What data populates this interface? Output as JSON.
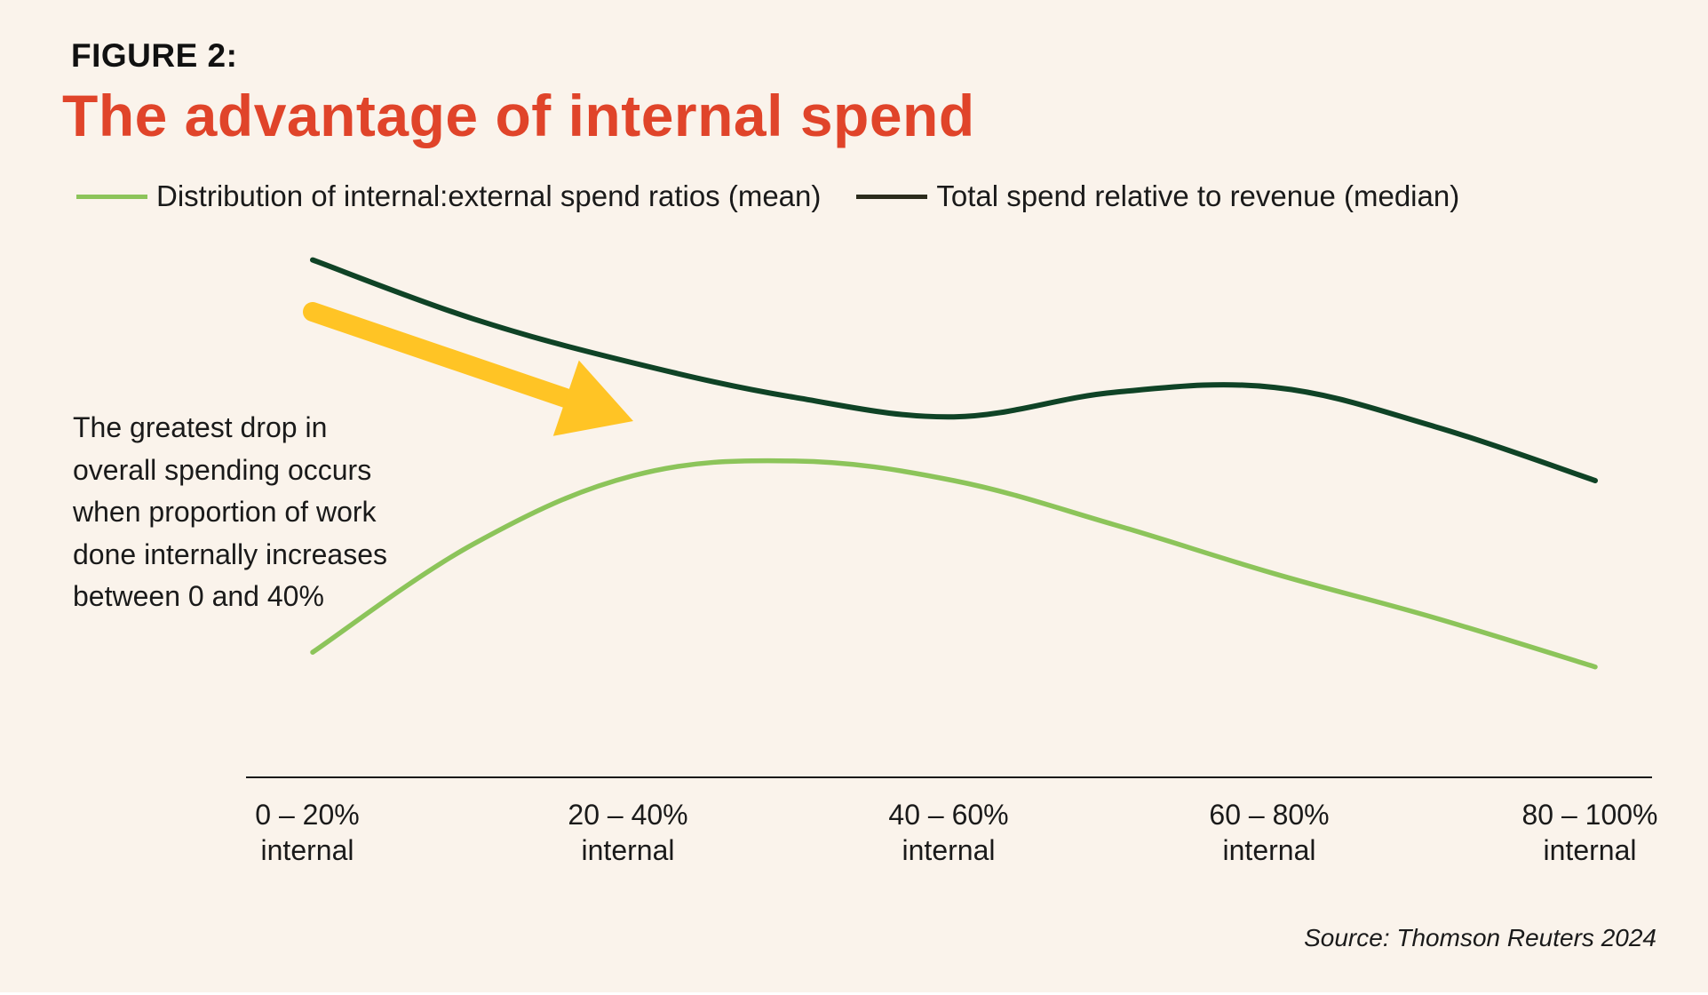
{
  "header": {
    "figure_label": "FIGURE 2:",
    "title": "The advantage of internal spend"
  },
  "annotation": {
    "text": "The greatest drop in overall spending occurs when proportion of work done internally increases between 0 and 40%",
    "lines": [
      "The greatest drop in",
      "overall spending occurs",
      "when proportion of work",
      "done internally increases",
      "between 0 and 40%"
    ]
  },
  "source": "Source: Thomson Reuters 2024",
  "colors": {
    "background": "#faf3eb",
    "title": "#e0442a",
    "internal_external_series": "#8cc45a",
    "total_spend_series": "#0f4326",
    "total_spend_legend_swatch": "#2b2b1c",
    "arrow": "#ffc425",
    "axis": "#1a1a1a"
  },
  "chart_data": {
    "type": "line",
    "title": "The advantage of internal spend",
    "xlabel": "",
    "ylabel": "",
    "categories": [
      [
        "0 – 20%",
        "internal"
      ],
      [
        "20 – 40%",
        "internal"
      ],
      [
        "40 – 60%",
        "internal"
      ],
      [
        "60 – 80%",
        "internal"
      ],
      [
        "80 – 100%",
        "internal"
      ]
    ],
    "ylim": [
      0,
      1
    ],
    "y_axis_values_shown": false,
    "grid": false,
    "legend_position": "top-left",
    "series": [
      {
        "name": "Distribution of internal:external spend ratios (mean)",
        "color": "#8cc45a",
        "x": [
          0,
          0.5,
          1,
          1.5,
          2,
          2.5,
          3,
          3.5,
          4
        ],
        "values": [
          0.17,
          0.39,
          0.53,
          0.56,
          0.52,
          0.43,
          0.33,
          0.24,
          0.14
        ]
      },
      {
        "name": "Total spend relative to revenue (median)",
        "color": "#0f4326",
        "legend_color": "#2b2b1c",
        "x": [
          0,
          0.5,
          1,
          1.5,
          2,
          2.5,
          3,
          3.5,
          4
        ],
        "values": [
          0.97,
          0.85,
          0.76,
          0.69,
          0.65,
          0.7,
          0.71,
          0.63,
          0.52
        ]
      }
    ],
    "annotations": [
      {
        "type": "arrow",
        "from_x": 0,
        "to_x": 1,
        "color": "#ffc425",
        "text": "The greatest drop in overall spending occurs when proportion of work done internally increases between 0 and 40%"
      }
    ]
  }
}
